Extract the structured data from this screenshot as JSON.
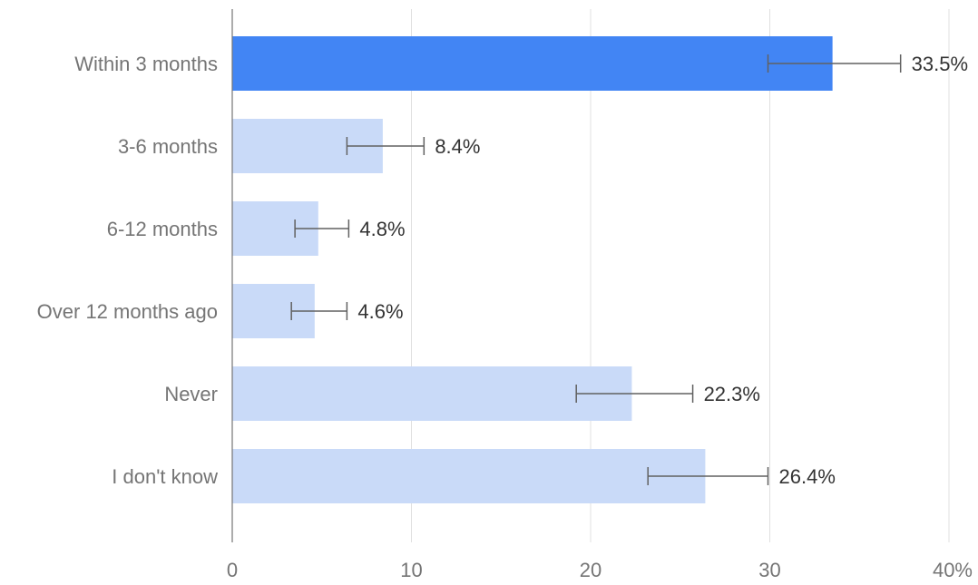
{
  "chart_data": {
    "type": "bar",
    "orientation": "horizontal",
    "title": "",
    "xlabel": "",
    "ylabel": "",
    "categories": [
      "Within 3 months",
      "3-6 months",
      "6-12 months",
      "Over 12 months ago",
      "Never",
      "I don't know"
    ],
    "values": [
      33.5,
      8.4,
      4.8,
      4.6,
      22.3,
      26.4
    ],
    "error_low": [
      29.9,
      6.4,
      3.5,
      3.3,
      19.2,
      23.2
    ],
    "error_high": [
      37.3,
      10.7,
      6.5,
      6.4,
      25.7,
      29.9
    ],
    "data_labels": [
      "33.5%",
      "8.4%",
      "4.8%",
      "4.6%",
      "22.3%",
      "26.4%"
    ],
    "highlight_index": 0,
    "xlim": [
      0,
      40
    ],
    "x_ticks": [
      0,
      10,
      20,
      30,
      40
    ],
    "x_tick_labels": [
      "0",
      "10",
      "20",
      "30",
      "40%"
    ],
    "grid": true,
    "legend": "none",
    "colors": {
      "highlight_bar": "#4285f4",
      "bar": "#c9daf8",
      "gridline": "#e0e0e0",
      "axis": "#757575",
      "error_bar": "#616161",
      "label_text": "#757575",
      "value_text": "#333333"
    }
  }
}
